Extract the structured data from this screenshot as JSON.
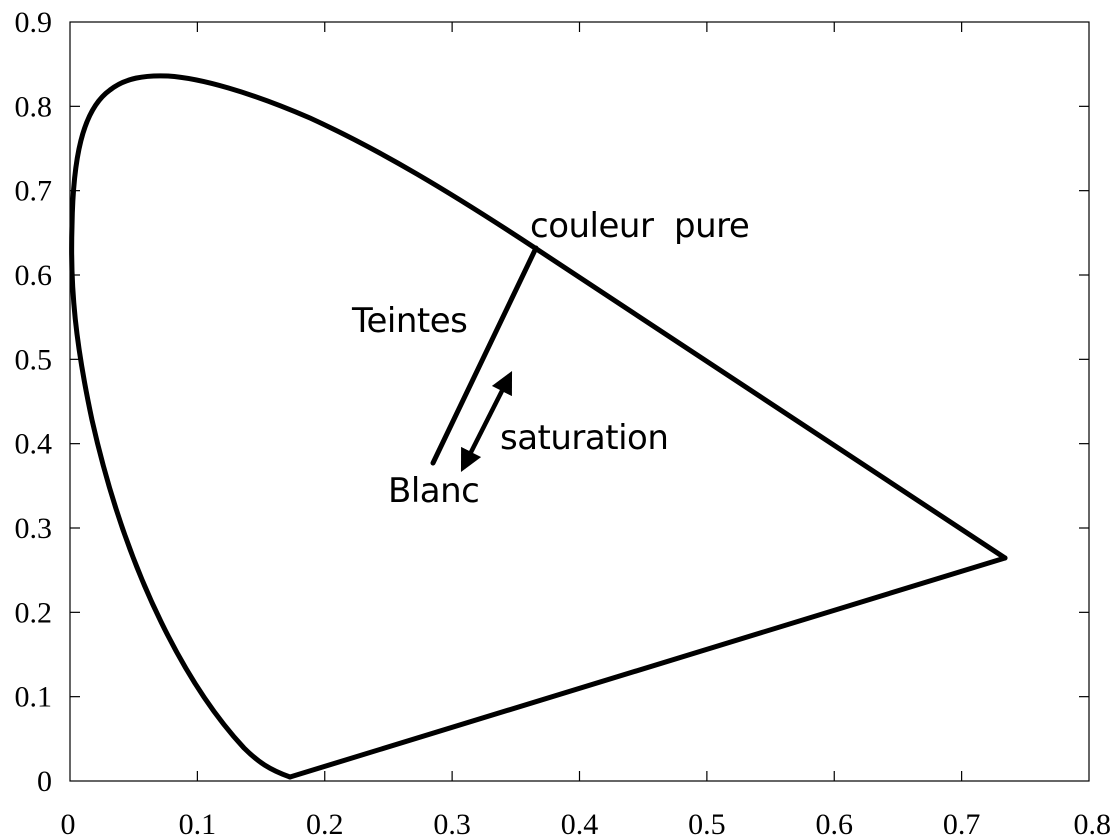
{
  "diagram": {
    "annotations": {
      "pure_color": "couleur  pure",
      "hues": "Teintes",
      "saturation": "saturation",
      "white": "Blanc"
    },
    "x_ticks": [
      "0",
      "0.1",
      "0.2",
      "0.3",
      "0.4",
      "0.5",
      "0.6",
      "0.7",
      "0.8"
    ],
    "y_ticks": [
      "0",
      "0.1",
      "0.2",
      "0.3",
      "0.4",
      "0.5",
      "0.6",
      "0.7",
      "0.8",
      "0.9"
    ],
    "x_range": [
      0,
      0.8
    ],
    "y_range": [
      0,
      0.9
    ],
    "stroke_color": "#000000",
    "background_color": "#ffffff"
  }
}
